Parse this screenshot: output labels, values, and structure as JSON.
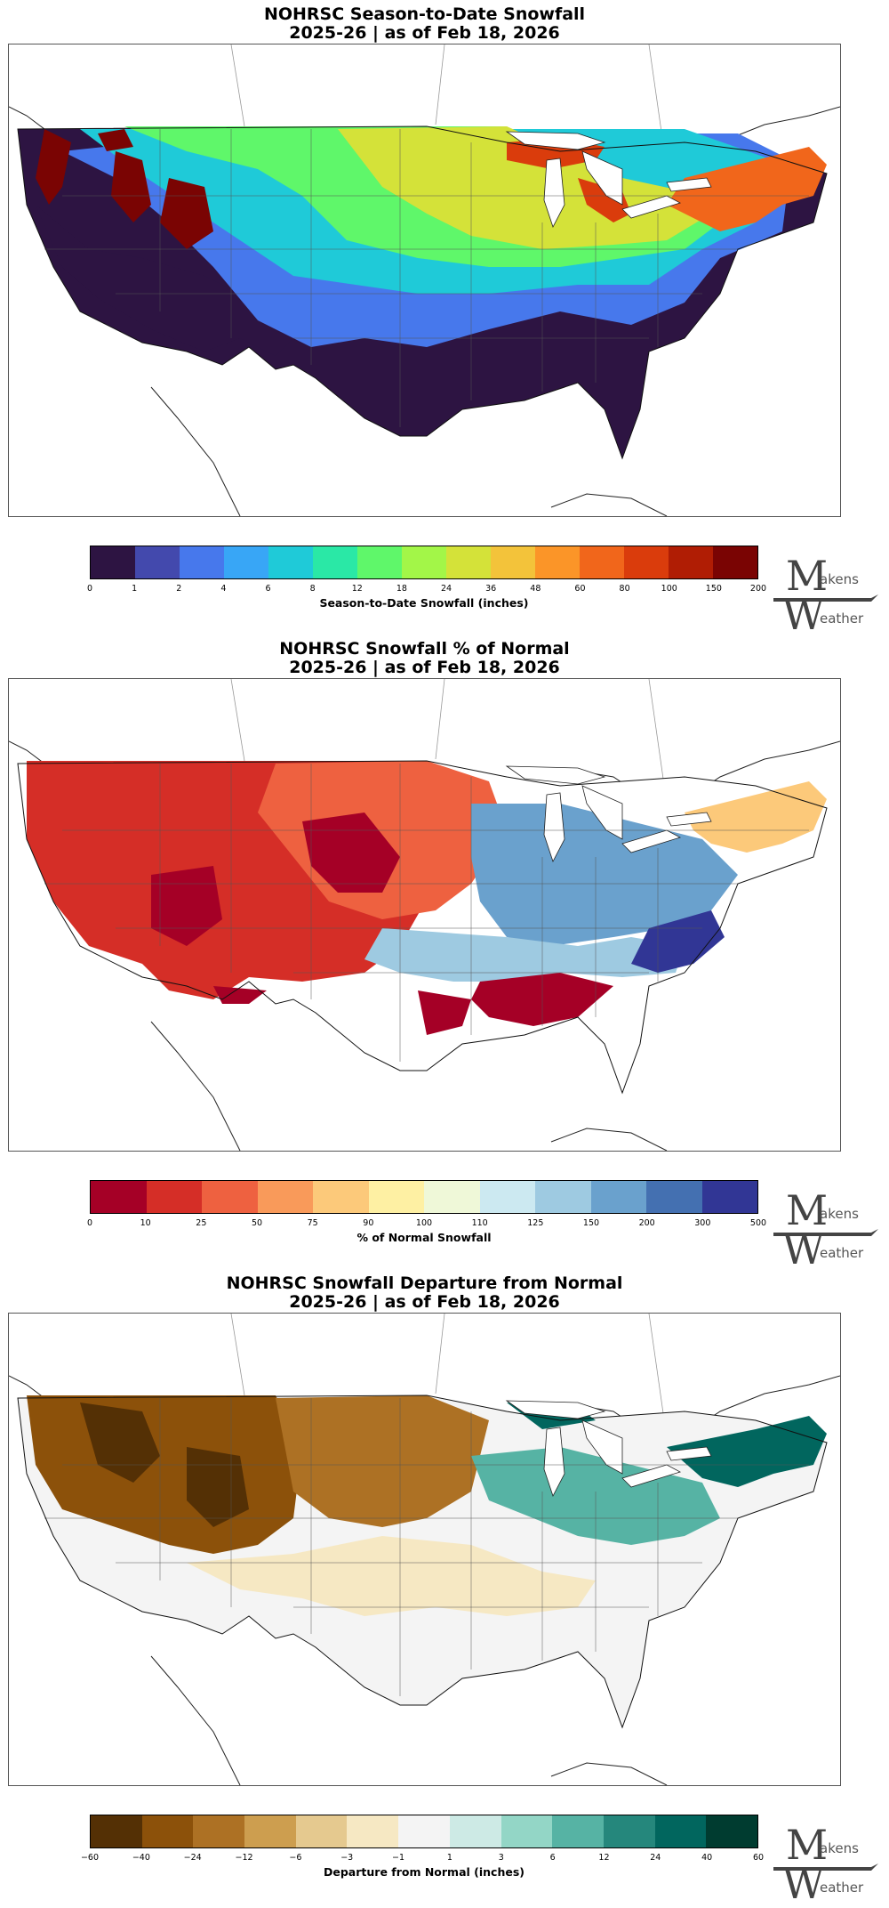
{
  "panels": [
    {
      "title": "NOHRSC Season-to-Date Snowfall",
      "subtitle": "2025-26 | as of Feb 18, 2026",
      "colorbar_label": "Season-to-Date Snowfall (inches)",
      "ticks": [
        "0",
        "1",
        "2",
        "4",
        "6",
        "8",
        "12",
        "18",
        "24",
        "36",
        "48",
        "60",
        "80",
        "100",
        "150",
        "200"
      ],
      "colors": [
        "#2d1442",
        "#4349ad",
        "#4778ec",
        "#38a6f6",
        "#1fcad8",
        "#2ae8a6",
        "#5ff76a",
        "#a3f648",
        "#d4e239",
        "#f3c33a",
        "#fb9528",
        "#f1661b",
        "#da3c0c",
        "#b01d04",
        "#7a0403"
      ],
      "regions": [
        {
          "name": "south",
          "color": "#2d1442"
        },
        {
          "name": "southwest",
          "color": "#2d1442"
        },
        {
          "name": "central-blue",
          "color": "#4778ec"
        },
        {
          "name": "plains-cyan",
          "color": "#1fcad8"
        },
        {
          "name": "north-green",
          "color": "#5ff76a"
        },
        {
          "name": "midwest-yellow",
          "color": "#d4e239"
        },
        {
          "name": "rockies",
          "color": "#7a0403"
        },
        {
          "name": "great-lakes",
          "color": "#da3c0c"
        },
        {
          "name": "northeast",
          "color": "#f1661b"
        }
      ]
    },
    {
      "title": "NOHRSC Snowfall % of Normal",
      "subtitle": "2025-26 | as of Feb 18, 2026",
      "colorbar_label": "% of Normal Snowfall",
      "ticks": [
        "0",
        "10",
        "25",
        "50",
        "75",
        "90",
        "100",
        "110",
        "125",
        "150",
        "200",
        "300",
        "500"
      ],
      "colors": [
        "#a50026",
        "#d52e27",
        "#ee6140",
        "#f99a5a",
        "#fcc97a",
        "#fef0a3",
        "#eff8d8",
        "#cce9f1",
        "#9ecae1",
        "#6aa1cd",
        "#4470b1",
        "#313695"
      ],
      "regions": [
        {
          "name": "west",
          "color": "#d52e27"
        },
        {
          "name": "plains",
          "color": "#ee6140"
        },
        {
          "name": "ohio-valley",
          "color": "#6aa1cd"
        },
        {
          "name": "northeast",
          "color": "#fcc97a"
        },
        {
          "name": "south-red",
          "color": "#a50026"
        },
        {
          "name": "carolinas",
          "color": "#313695"
        }
      ]
    },
    {
      "title": "NOHRSC Snowfall Departure from Normal",
      "subtitle": "2025-26 | as of Feb 18, 2026",
      "colorbar_label": "Departure from Normal (inches)",
      "ticks": [
        "−60",
        "−40",
        "−24",
        "−12",
        "−6",
        "−3",
        "−1",
        "1",
        "3",
        "6",
        "12",
        "24",
        "40",
        "60"
      ],
      "colors": [
        "#543005",
        "#8c510a",
        "#ad7124",
        "#cd9e4f",
        "#e5c98f",
        "#f6e8c3",
        "#f4f4f4",
        "#cdeae5",
        "#93d6c6",
        "#56b3a4",
        "#25877c",
        "#01665e",
        "#003c30"
      ],
      "regions": [
        {
          "name": "west",
          "color": "#8c510a"
        },
        {
          "name": "plains",
          "color": "#ad7124"
        },
        {
          "name": "south",
          "color": "#f4f4f4"
        },
        {
          "name": "ohio-valley",
          "color": "#56b3a4"
        },
        {
          "name": "northeast",
          "color": "#01665e"
        },
        {
          "name": "midsouth",
          "color": "#f6e8c3"
        }
      ]
    }
  ],
  "logo": {
    "letter_top": "M",
    "text_top": "akens",
    "letter_bottom": "W",
    "text_bottom": "eather"
  }
}
